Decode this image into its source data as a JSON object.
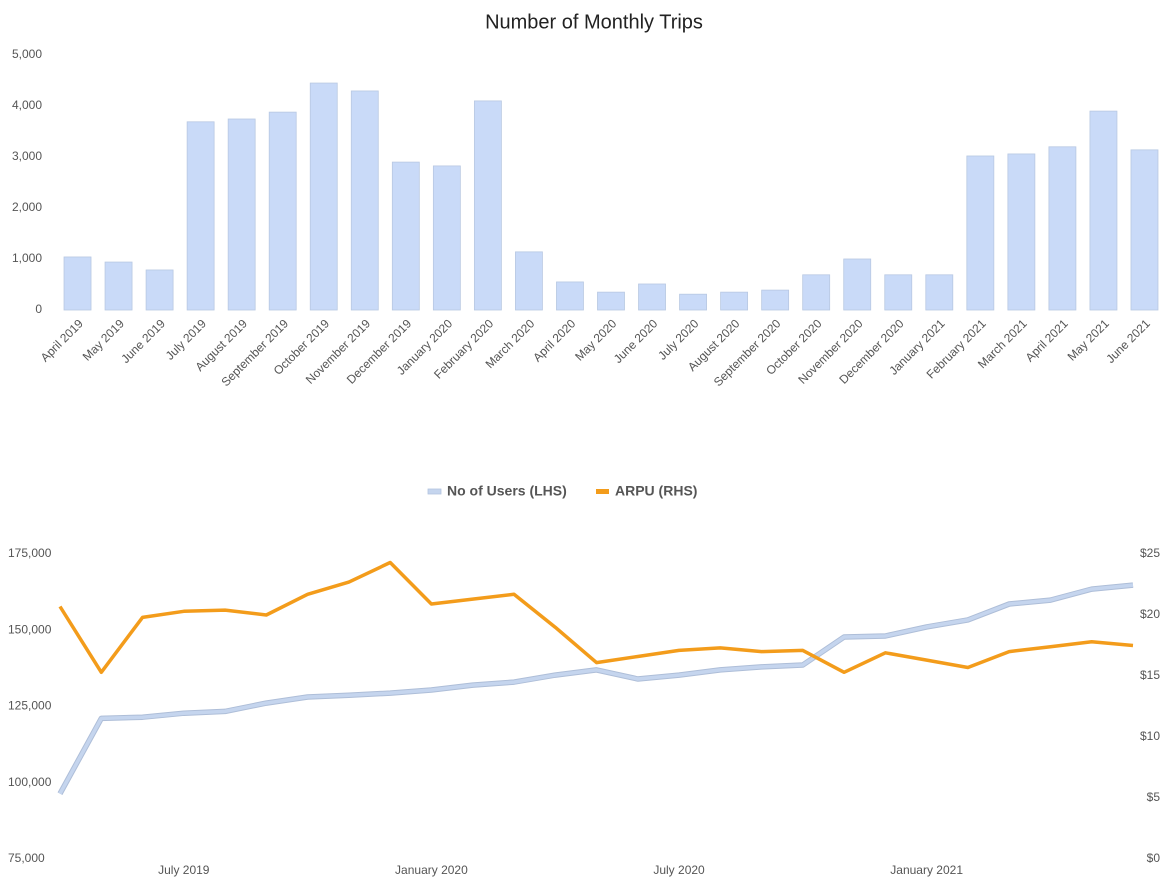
{
  "chart_data": [
    {
      "type": "bar",
      "title": "Number of Monthly Trips",
      "categories": [
        "April 2019",
        "May 2019",
        "June 2019",
        "July 2019",
        "August 2019",
        "September 2019",
        "October 2019",
        "November 2019",
        "December 2019",
        "January 2020",
        "February 2020",
        "March 2020",
        "April 2020",
        "May 2020",
        "June 2020",
        "July 2020",
        "August 2020",
        "September 2020",
        "October 2020",
        "November 2020",
        "December 2020",
        "January 2021",
        "February 2021",
        "March 2021",
        "April 2021",
        "May 2021",
        "June 2021"
      ],
      "values": [
        1040,
        940,
        785,
        3690,
        3745,
        3880,
        4450,
        4295,
        2900,
        2825,
        4100,
        1140,
        550,
        350,
        510,
        310,
        350,
        390,
        690,
        1000,
        690,
        690,
        3020,
        3060,
        3200,
        3900,
        3140
      ],
      "color": "#c9daf8",
      "ylim": [
        0,
        5000
      ],
      "yticks": [
        0,
        {
          "value": 1000,
          "label": "1,000"
        },
        {
          "value": 2000,
          "label": "2,000"
        },
        {
          "value": 3000,
          "label": "3,000"
        },
        {
          "value": 4000,
          "label": "4,000"
        },
        {
          "value": 5000,
          "label": "5,000"
        }
      ],
      "grid": false
    },
    {
      "type": "line",
      "categories": [
        null,
        null,
        null,
        "July 2019",
        null,
        null,
        null,
        null,
        null,
        "January 2020",
        null,
        null,
        null,
        null,
        null,
        "July 2020",
        null,
        null,
        null,
        null,
        null,
        "January 2021",
        null,
        null,
        null,
        null,
        null
      ],
      "series": [
        {
          "name": "No of Users (LHS)",
          "color": "#c5d5ee",
          "values": [
            96400,
            121100,
            121500,
            122800,
            123400,
            126100,
            128100,
            128700,
            129400,
            130400,
            132000,
            133000,
            135300,
            137000,
            134000,
            135300,
            137000,
            138000,
            138600,
            147800,
            148100,
            151100,
            153400,
            158600,
            159900,
            163500,
            164800
          ]
        },
        {
          "name": "ARPU (RHS)",
          "color": "#f39c1b",
          "axis": "y2",
          "values": [
            20.7,
            15.3,
            19.8,
            20.3,
            20.4,
            20.0,
            21.7,
            22.7,
            24.3,
            20.9,
            21.3,
            21.7,
            19.0,
            16.1,
            16.6,
            17.1,
            17.3,
            17.0,
            17.1,
            15.3,
            16.9,
            16.3,
            15.7,
            17.0,
            17.4,
            17.8,
            17.5
          ]
        }
      ],
      "ylim": [
        75000,
        175000
      ],
      "yticks": [
        {
          "value": 75000,
          "label": "75,000"
        },
        {
          "value": 100000,
          "label": "100,000"
        },
        {
          "value": 125000,
          "label": "125,000"
        },
        {
          "value": 150000,
          "label": "150,000"
        },
        {
          "value": 175000,
          "label": "175,000"
        }
      ],
      "y2lim": [
        0,
        25
      ],
      "y2ticks": [
        {
          "value": 0,
          "label": "$0"
        },
        {
          "value": 5,
          "label": "$5"
        },
        {
          "value": 10,
          "label": "$10"
        },
        {
          "value": 15,
          "label": "$15"
        },
        {
          "value": 20,
          "label": "$20"
        },
        {
          "value": 25,
          "label": "$25"
        }
      ],
      "legend": "top",
      "grid": false
    }
  ]
}
